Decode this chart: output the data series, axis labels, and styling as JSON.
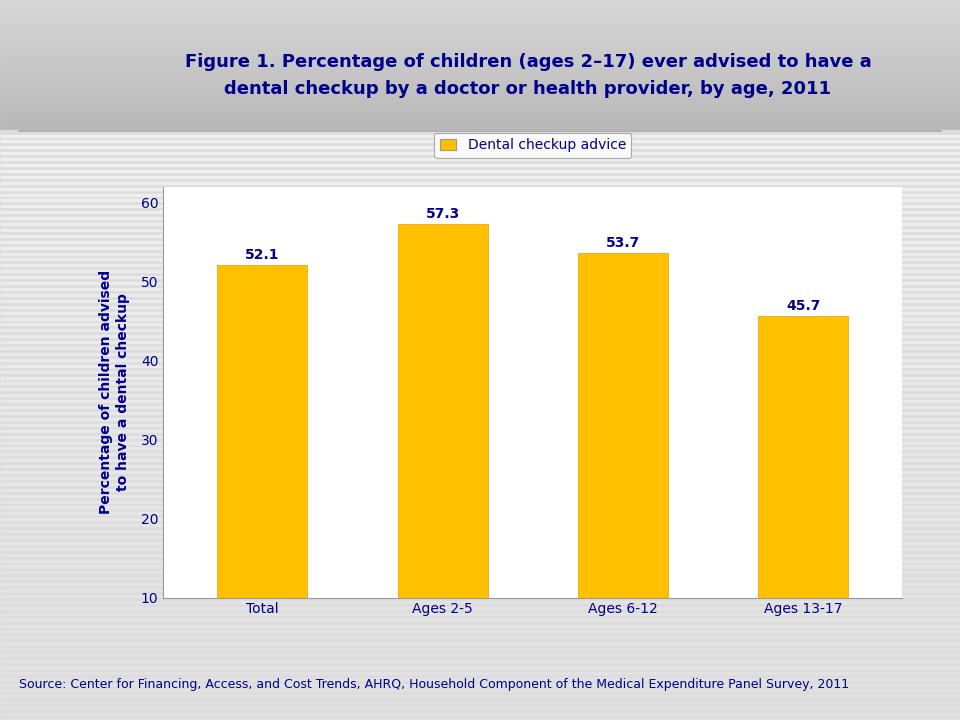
{
  "title_line1": "Figure 1. Percentage of children (ages 2–17) ever advised to have a",
  "title_line2": "dental checkup by a doctor or health provider, by age, 2011",
  "categories": [
    "Total",
    "Ages 2-5",
    "Ages 6-12",
    "Ages 13-17"
  ],
  "values": [
    52.1,
    57.3,
    53.7,
    45.7
  ],
  "bar_color": "#FFC000",
  "title_color": "#00008B",
  "axis_label_color": "#00008B",
  "tick_label_color": "#00008B",
  "value_label_color": "#00008B",
  "legend_label": "Dental checkup advice",
  "ylabel": "Percentage of children advised\nto have a dental checkup",
  "ylim_min": 10,
  "ylim_max": 62,
  "yticks": [
    10,
    20,
    30,
    40,
    50,
    60
  ],
  "source_text": "Source: Center for Financing, Access, and Cost Trends, AHRQ, Household Component of the Medical Expenditure Panel Survey, 2011",
  "background_color_top": "#C8C8C8",
  "background_color_bottom": "#F0F0F0",
  "header_bg": "#D0D0D0",
  "plot_bg_color": "#FFFFFF",
  "title_fontsize": 13,
  "axis_label_fontsize": 10,
  "tick_fontsize": 10,
  "value_fontsize": 10,
  "legend_fontsize": 10,
  "source_fontsize": 9,
  "separator_color": "#AAAAAA"
}
